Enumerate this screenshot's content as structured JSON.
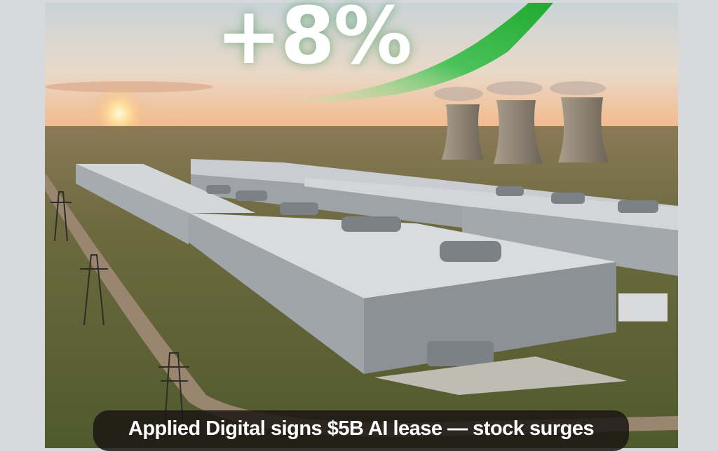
{
  "overlay": {
    "headline": "+8%",
    "caption": "Applied Digital signs $5B AI lease — stock surges"
  },
  "colors": {
    "arrow_green": "#22b33a",
    "caption_bg": "#1c1614",
    "frame_bg": "#d5d9dc"
  },
  "icons": [
    "up-trend-arrow"
  ]
}
